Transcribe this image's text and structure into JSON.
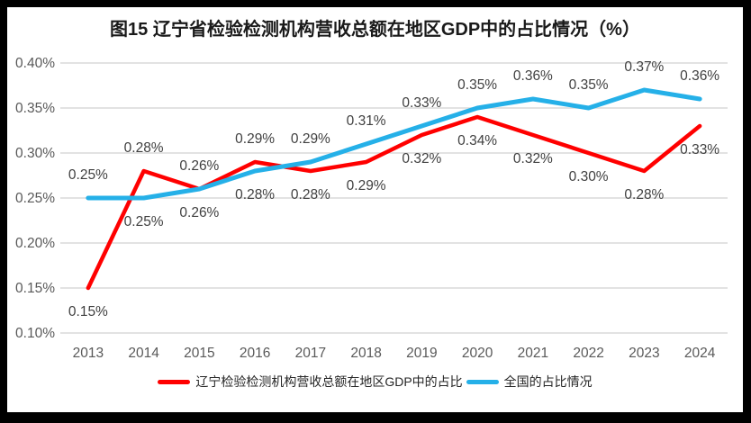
{
  "title": "图15 辽宁省检验检测机构营收总额在地区GDP中的占比情况（%）",
  "chart_data": {
    "type": "line",
    "categories": [
      "2013",
      "2014",
      "2015",
      "2016",
      "2017",
      "2018",
      "2019",
      "2020",
      "2021",
      "2022",
      "2023",
      "2024"
    ],
    "series": [
      {
        "name": "辽宁检验检测机构营收总额在地区GDP中的占比",
        "color": "#FF0000",
        "values": [
          0.15,
          0.28,
          0.26,
          0.29,
          0.28,
          0.29,
          0.32,
          0.34,
          0.32,
          0.3,
          0.28,
          0.33
        ],
        "data_labels": [
          "0.15%",
          "0.28%",
          "0.26%",
          "0.29%",
          "0.28%",
          "0.29%",
          "0.32%",
          "0.34%",
          "0.32%",
          "0.30%",
          "0.28%",
          "0.33%"
        ],
        "label_positions": [
          "below",
          "above",
          "above",
          "above",
          "below",
          "below",
          "below",
          "below",
          "below",
          "below",
          "below",
          "below"
        ]
      },
      {
        "name": "全国的占比情况",
        "color": "#25B0E8",
        "values": [
          0.25,
          0.25,
          0.26,
          0.28,
          0.29,
          0.31,
          0.33,
          0.35,
          0.36,
          0.35,
          0.37,
          0.36
        ],
        "data_labels": [
          "0.25%",
          "0.25%",
          "0.26%",
          "0.28%",
          "0.29%",
          "0.31%",
          "0.33%",
          "0.35%",
          "0.36%",
          "0.35%",
          "0.37%",
          "0.36%"
        ],
        "label_positions": [
          "above",
          "below",
          "below",
          "below",
          "above",
          "above",
          "above",
          "above",
          "above",
          "above",
          "above",
          "above"
        ]
      }
    ],
    "y_axis": {
      "min": 0.1,
      "max": 0.4,
      "step": 0.05,
      "tick_labels": [
        "0.40%",
        "0.35%",
        "0.30%",
        "0.25%",
        "0.20%",
        "0.15%",
        "0.10%"
      ],
      "grid": true
    },
    "xlabel": "",
    "ylabel": "",
    "legend_position": "bottom"
  },
  "colors": {
    "grid": "#D9D9D9",
    "axis_text": "#595959",
    "data_label_text": "#404040",
    "frame": "#000000",
    "background": "#FFFFFF"
  }
}
